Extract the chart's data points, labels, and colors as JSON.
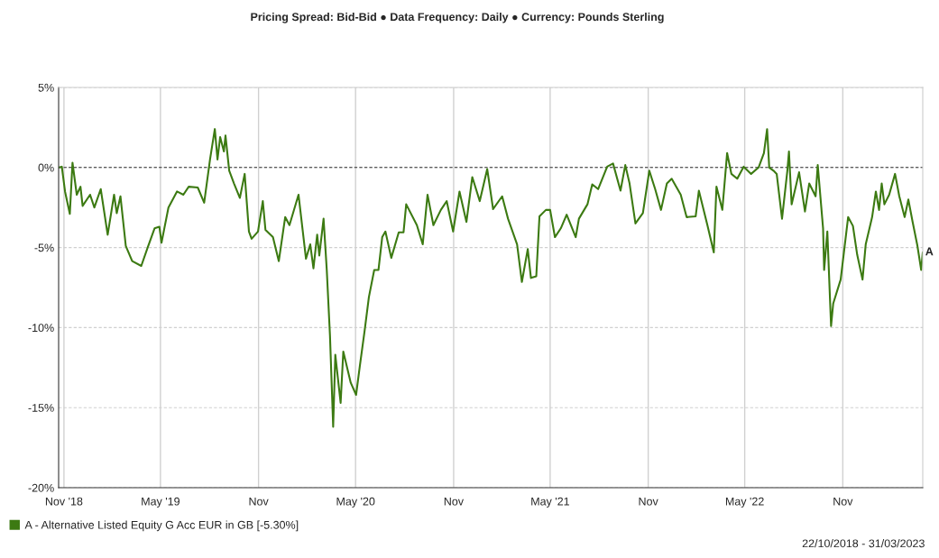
{
  "chart_data": {
    "type": "line",
    "title": "Pricing Spread: Bid-Bid ● Data Frequency: Daily ● Currency: Pounds Sterling",
    "x": [
      "2018-10-22",
      "2018-10-28",
      "2018-11-03",
      "2018-11-12",
      "2018-11-17",
      "2018-11-25",
      "2018-12-02",
      "2018-12-06",
      "2018-12-20",
      "2018-12-28",
      "2019-01-09",
      "2019-01-22",
      "2019-02-03",
      "2019-02-08",
      "2019-02-15",
      "2019-02-25",
      "2019-03-09",
      "2019-03-26",
      "2019-04-07",
      "2019-04-20",
      "2019-04-29",
      "2019-05-03",
      "2019-05-16",
      "2019-06-01",
      "2019-06-13",
      "2019-06-23",
      "2019-07-10",
      "2019-07-22",
      "2019-08-02",
      "2019-08-11",
      "2019-08-16",
      "2019-08-21",
      "2019-08-28",
      "2019-08-31",
      "2019-09-07",
      "2019-09-16",
      "2019-09-27",
      "2019-10-06",
      "2019-10-14",
      "2019-10-19",
      "2019-10-31",
      "2019-11-09",
      "2019-11-14",
      "2019-11-28",
      "2019-12-09",
      "2019-12-21",
      "2019-12-29",
      "2020-01-15",
      "2020-01-29",
      "2020-02-06",
      "2020-02-12",
      "2020-02-19",
      "2020-02-23",
      "2020-03-02",
      "2020-03-08",
      "2020-03-14",
      "2020-03-20",
      "2020-03-24",
      "2020-04-03",
      "2020-04-08",
      "2020-04-22",
      "2020-05-02",
      "2020-05-09",
      "2020-05-18",
      "2020-05-26",
      "2020-06-05",
      "2020-06-13",
      "2020-06-20",
      "2020-06-26",
      "2020-07-07",
      "2020-07-21",
      "2020-07-30",
      "2020-08-04",
      "2020-08-24",
      "2020-09-04",
      "2020-09-13",
      "2020-09-24",
      "2020-10-08",
      "2020-10-19",
      "2020-10-31",
      "2020-11-12",
      "2020-11-25",
      "2020-12-06",
      "2020-12-20",
      "2021-01-03",
      "2021-01-14",
      "2021-01-31",
      "2021-02-11",
      "2021-02-28",
      "2021-03-09",
      "2021-03-20",
      "2021-03-26",
      "2021-04-05",
      "2021-04-11",
      "2021-04-23",
      "2021-05-01",
      "2021-05-10",
      "2021-05-21",
      "2021-06-01",
      "2021-06-18",
      "2021-06-24",
      "2021-07-10",
      "2021-07-19",
      "2021-07-30",
      "2021-08-16",
      "2021-08-27",
      "2021-09-10",
      "2021-09-19",
      "2021-09-27",
      "2021-10-08",
      "2021-10-22",
      "2021-11-03",
      "2021-11-14",
      "2021-11-25",
      "2021-12-06",
      "2021-12-15",
      "2022-01-01",
      "2022-01-12",
      "2022-01-29",
      "2022-02-04",
      "2022-02-20",
      "2022-03-04",
      "2022-03-09",
      "2022-03-20",
      "2022-03-29",
      "2022-04-06",
      "2022-04-17",
      "2022-04-29",
      "2022-05-13",
      "2022-05-27",
      "2022-06-06",
      "2022-06-12",
      "2022-06-16",
      "2022-06-24",
      "2022-06-30",
      "2022-07-10",
      "2022-07-20",
      "2022-07-23",
      "2022-07-28",
      "2022-08-11",
      "2022-08-22",
      "2022-08-30",
      "2022-09-11",
      "2022-09-15",
      "2022-09-25",
      "2022-09-27",
      "2022-10-03",
      "2022-10-10",
      "2022-10-14",
      "2022-10-28",
      "2022-11-11",
      "2022-11-20",
      "2022-11-28",
      "2022-12-08",
      "2022-12-14",
      "2022-12-26",
      "2023-01-02",
      "2023-01-08",
      "2023-01-13",
      "2023-01-18",
      "2023-01-27",
      "2023-02-07",
      "2023-02-15",
      "2023-02-25",
      "2023-03-04",
      "2023-03-12",
      "2023-03-21",
      "2023-03-28",
      "2023-03-31"
    ],
    "series": [
      {
        "name": "A - Alternative Listed Equity G Acc EUR in GB [-5.30%]",
        "color": "#3c7a12",
        "values": [
          0,
          0.05,
          -1.5,
          -2.9,
          0.3,
          -1.7,
          -1.2,
          -2.4,
          -1.7,
          -2.5,
          -1.35,
          -4.2,
          -1.7,
          -2.85,
          -1.8,
          -4.9,
          -5.85,
          -6.15,
          -5.0,
          -3.8,
          -3.7,
          -4.7,
          -2.5,
          -1.5,
          -1.7,
          -1.2,
          -1.25,
          -2.2,
          0.5,
          2.4,
          0.5,
          1.9,
          1.0,
          2.0,
          -0.2,
          -1.0,
          -1.9,
          -0.4,
          -4.0,
          -4.45,
          -4.0,
          -2.1,
          -3.9,
          -4.35,
          -5.85,
          -3.1,
          -3.6,
          -1.7,
          -5.7,
          -4.8,
          -6.3,
          -4.2,
          -5.5,
          -3.2,
          -6.4,
          -10.5,
          -16.2,
          -11.7,
          -14.7,
          -11.5,
          -13.45,
          -14.2,
          -12.4,
          -10.2,
          -8.1,
          -6.4,
          -6.4,
          -4.35,
          -4.0,
          -5.65,
          -4.05,
          -4.05,
          -2.3,
          -3.6,
          -4.8,
          -1.7,
          -3.6,
          -2.65,
          -2.1,
          -4.0,
          -1.5,
          -3.4,
          -0.6,
          -2.1,
          -0.1,
          -2.6,
          -1.8,
          -3.2,
          -4.8,
          -7.15,
          -5.1,
          -6.9,
          -6.8,
          -3.05,
          -2.65,
          -2.65,
          -4.35,
          -3.8,
          -2.95,
          -4.35,
          -3.2,
          -2.3,
          -1.05,
          -1.35,
          0.05,
          0.25,
          -1.45,
          0.15,
          -1.0,
          -3.5,
          -2.85,
          -0.2,
          -1.35,
          -2.65,
          -1.0,
          -0.7,
          -1.7,
          -3.1,
          -3.05,
          -1.45,
          -3.6,
          -5.3,
          -1.2,
          -2.65,
          0.9,
          -0.4,
          -0.7,
          0.05,
          -0.4,
          0,
          0.9,
          2.4,
          0,
          -0.2,
          -0.4,
          -3.2,
          -0.2,
          1.0,
          -2.3,
          -0.3,
          -2.75,
          -1.0,
          -1.8,
          0.15,
          -3.8,
          -6.4,
          -4.0,
          -9.9,
          -8.5,
          -7.0,
          -3.1,
          -3.65,
          -5.45,
          -7.0,
          -4.8,
          -3.1,
          -1.5,
          -2.65,
          -1.0,
          -2.3,
          -1.7,
          -0.4,
          -1.8,
          -3.1,
          -2.0,
          -3.4,
          -4.9,
          -6.4,
          -5.3
        ]
      }
    ],
    "xlim": [
      "2018-10-22",
      "2023-03-31"
    ],
    "xticks": [
      {
        "value": "2018-11-01",
        "label": "Nov '18"
      },
      {
        "value": "2019-05-01",
        "label": "May '19"
      },
      {
        "value": "2019-11-01",
        "label": "Nov"
      },
      {
        "value": "2020-05-01",
        "label": "May '20"
      },
      {
        "value": "2020-11-01",
        "label": "Nov"
      },
      {
        "value": "2021-05-01",
        "label": "May '21"
      },
      {
        "value": "2021-11-01",
        "label": "Nov"
      },
      {
        "value": "2022-05-01",
        "label": "May '22"
      },
      {
        "value": "2022-11-01",
        "label": "Nov"
      }
    ],
    "ylim": [
      -20,
      5
    ],
    "yticks": [
      {
        "value": 5,
        "label": "5%"
      },
      {
        "value": 0,
        "label": "0%"
      },
      {
        "value": -5,
        "label": "-5%"
      },
      {
        "value": -10,
        "label": "-10%"
      },
      {
        "value": -15,
        "label": "-15%"
      },
      {
        "value": -20,
        "label": "-20%"
      }
    ],
    "ref_lines": [
      {
        "axis": "y",
        "value": 0,
        "color": "#333333",
        "line_style": "dashed"
      }
    ],
    "annotations": [
      {
        "text": "A",
        "x": "2023-03-31",
        "y": -5.3
      },
      "22/10/2018 - 31/03/2023"
    ],
    "grid": true,
    "legend": "bottom left"
  }
}
